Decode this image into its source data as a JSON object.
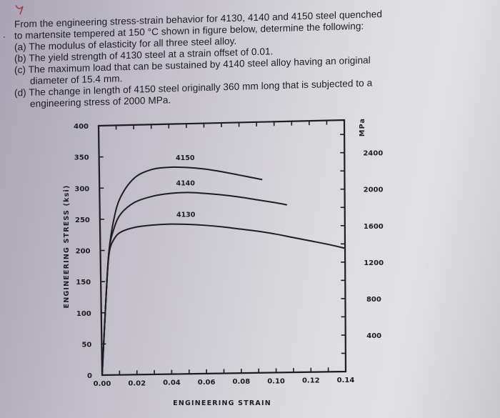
{
  "question": {
    "intro_line1": "From the engineering stress-strain behavior for 4130, 4140 and 4150 steel quenched",
    "intro_line2": "to martensite tempered at 150 °C shown in figure below, determine the following:",
    "part_a": "(a) The modulus of elasticity for all three steel alloy.",
    "part_b": "(b) The yield strength of 4130 steel at a strain offset of 0.01.",
    "part_c_line1": "(c) The maximum load that can be sustained by 4140 steel alloy having an original",
    "part_c_line2": "diameter of 15.4 mm.",
    "part_d_line1": "(d) The change in length of 4150 steel originally 360 mm long that is subjected to a",
    "part_d_line2": "engineering stress of 2000 MPa.",
    "bullet": "."
  },
  "chart_data": {
    "type": "line",
    "title": "",
    "xlabel": "ENGINEERING STRAIN",
    "ylabel": "ENGINEERING STRESS (ksi)",
    "y2label": "MPa",
    "xlim": [
      0,
      0.14
    ],
    "ylim": [
      0,
      400
    ],
    "y2lim": [
      0,
      2758
    ],
    "x_ticks": [
      "0.00",
      "0.02",
      "0.04",
      "0.06",
      "0.08",
      "0.10",
      "0.12",
      "0.14"
    ],
    "y_ticks": [
      "0",
      "50",
      "100",
      "150",
      "200",
      "250",
      "300",
      "350",
      "400"
    ],
    "y2_ticks": [
      "400",
      "800",
      "1200",
      "1600",
      "2000",
      "2400"
    ],
    "grid": false,
    "legend": "inline curve labels",
    "series": [
      {
        "name": "4150",
        "x": [
          0.0,
          0.003,
          0.005,
          0.008,
          0.012,
          0.02,
          0.03,
          0.04,
          0.05,
          0.06,
          0.07,
          0.08,
          0.093
        ],
        "y": [
          0,
          130,
          200,
          250,
          285,
          315,
          328,
          331,
          330,
          327,
          322,
          316,
          308
        ]
      },
      {
        "name": "4140",
        "x": [
          0.0,
          0.003,
          0.005,
          0.008,
          0.012,
          0.02,
          0.03,
          0.04,
          0.05,
          0.06,
          0.07,
          0.08,
          0.09,
          0.1,
          0.107
        ],
        "y": [
          0,
          130,
          200,
          235,
          258,
          276,
          285,
          289,
          290,
          288,
          285,
          281,
          276,
          271,
          267
        ]
      },
      {
        "name": "4130",
        "x": [
          0.0,
          0.003,
          0.005,
          0.008,
          0.012,
          0.02,
          0.03,
          0.04,
          0.05,
          0.06,
          0.07,
          0.08,
          0.09,
          0.1,
          0.11,
          0.12,
          0.13,
          0.14
        ],
        "y": [
          0,
          130,
          195,
          218,
          229,
          236,
          239,
          240,
          239,
          237,
          234,
          230,
          226,
          221,
          215,
          209,
          203,
          196
        ]
      }
    ]
  },
  "colors": {
    "ink": "#1d1d22",
    "annotation": "#a0323c"
  }
}
